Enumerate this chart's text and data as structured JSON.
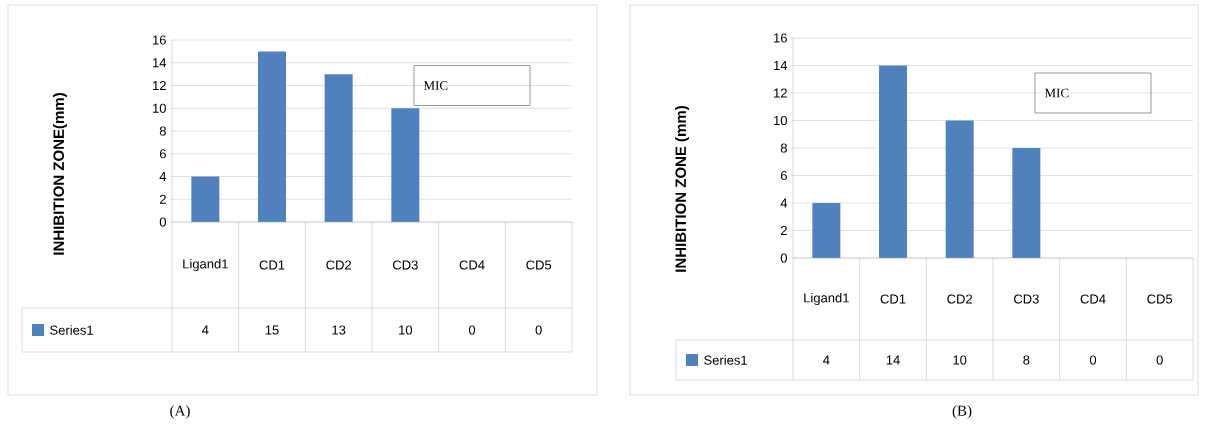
{
  "chart_data": [
    {
      "type": "bar",
      "ylabel": "INHIBITION ZONE(mm)",
      "categories": [
        "Ligand1",
        "CD1",
        "CD2",
        "CD3",
        "CD4",
        "CD5"
      ],
      "series": [
        {
          "name": "Series1",
          "color": "#4f81bd",
          "values": [
            4,
            15,
            13,
            10,
            0,
            0
          ]
        }
      ],
      "ylim": [
        0,
        16
      ],
      "yticks": [
        0,
        2,
        4,
        6,
        8,
        10,
        12,
        14,
        16
      ],
      "grid": "y",
      "legend": "bottom",
      "data_labels": true,
      "annotations": [
        "MIC",
        "(A)"
      ]
    },
    {
      "type": "bar",
      "ylabel": "INHIBITION ZONE (mm)",
      "categories": [
        "Ligand1",
        "CD1",
        "CD2",
        "CD3",
        "CD4",
        "CD5"
      ],
      "series": [
        {
          "name": "Series1",
          "color": "#4f81bd",
          "values": [
            4,
            14,
            10,
            8,
            0,
            0
          ]
        }
      ],
      "ylim": [
        0,
        16
      ],
      "yticks": [
        0,
        2,
        4,
        6,
        8,
        10,
        12,
        14,
        16
      ],
      "grid": "y",
      "legend": "bottom",
      "data_labels": true,
      "annotations": [
        "MIC",
        "(B)"
      ]
    }
  ]
}
